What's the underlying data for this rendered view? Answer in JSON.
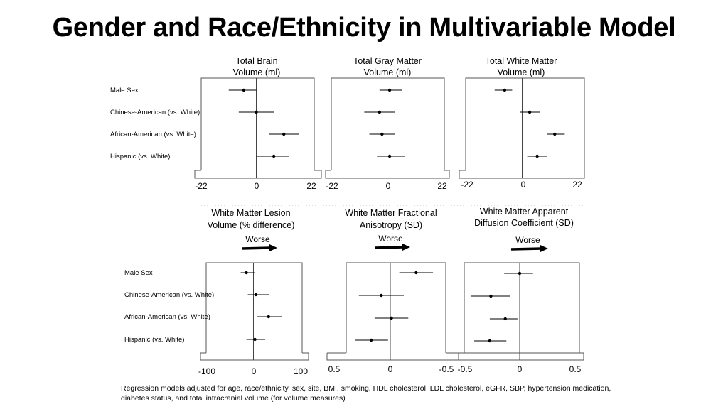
{
  "title": "Gender and Race/Ethnicity in Multivariable Model",
  "footnote": "Regression models adjusted for age, race/ethnicity, sex, site, BMI, smoking, HDL cholesterol, LDL cholesterol, eGFR, SBP, hypertension medication, diabetes status, and total intracranial volume (for volume measures)",
  "worse_label": "Worse",
  "chart_data": [
    {
      "type": "forest",
      "title_lines": [
        "Total Brain",
        "Volume (ml)"
      ],
      "categories": [
        "Male Sex",
        "Chinese-American (vs. White)",
        "African-American (vs. White)",
        "Hispanic (vs. White)"
      ],
      "estimates": [
        -5,
        0,
        11,
        7
      ],
      "ci_low": [
        -11,
        -7,
        5,
        0
      ],
      "ci_high": [
        0,
        7,
        17,
        13
      ],
      "xlim": [
        -22,
        22
      ],
      "ticks": [
        -22,
        0,
        22
      ],
      "tick_labels": [
        "-22",
        "0",
        "22"
      ],
      "reversed": false
    },
    {
      "type": "forest",
      "title_lines": [
        "Total Gray Matter",
        "Volume (ml)"
      ],
      "categories": [
        "Male Sex",
        "Chinese-American (vs. White)",
        "African-American (vs. White)",
        "Hispanic (vs. White)"
      ],
      "estimates": [
        1,
        -3,
        -2,
        1
      ],
      "ci_low": [
        -3,
        -9,
        -7,
        -4
      ],
      "ci_high": [
        6,
        3,
        3,
        7
      ],
      "xlim": [
        -22,
        22
      ],
      "ticks": [
        -22,
        0,
        22
      ],
      "tick_labels": [
        "-22",
        "0",
        "22"
      ],
      "reversed": false
    },
    {
      "type": "forest",
      "title_lines": [
        "Total White Matter",
        "Volume (ml)"
      ],
      "categories": [
        "Male Sex",
        "Chinese-American (vs. White)",
        "African-American (vs. White)",
        "Hispanic (vs. White)"
      ],
      "estimates": [
        -7,
        3,
        13,
        6
      ],
      "ci_low": [
        -11,
        -1,
        10,
        2
      ],
      "ci_high": [
        -4,
        7,
        17,
        10
      ],
      "xlim": [
        -22,
        22
      ],
      "ticks": [
        -22,
        0,
        22
      ],
      "tick_labels": [
        "-22",
        "0",
        "22"
      ],
      "reversed": false
    },
    {
      "type": "forest",
      "title_lines": [
        "White Matter Lesion",
        "Volume (% difference)"
      ],
      "show_worse": true,
      "categories": [
        "Male Sex",
        "Chinese-American (vs. White)",
        "African-American (vs. White)",
        "Hispanic (vs. White)"
      ],
      "estimates": [
        -15,
        5,
        32,
        3
      ],
      "ci_low": [
        -27,
        -12,
        8,
        -15
      ],
      "ci_high": [
        2,
        33,
        60,
        25
      ],
      "xlim": [
        -100,
        100
      ],
      "ticks": [
        -100,
        0,
        100
      ],
      "tick_labels": [
        "-100",
        "0",
        "100"
      ],
      "reversed": false
    },
    {
      "type": "forest",
      "title_lines": [
        "White Matter Fractional",
        "Anisotropy (SD)"
      ],
      "show_worse": true,
      "categories": [
        "Male Sex",
        "Chinese-American (vs. White)",
        "African-American (vs. White)",
        "Hispanic (vs. White)"
      ],
      "estimates": [
        -0.23,
        0.08,
        -0.01,
        0.17
      ],
      "ci_low": [
        -0.38,
        -0.12,
        -0.16,
        0.02
      ],
      "ci_high": [
        -0.08,
        0.28,
        0.14,
        0.31
      ],
      "xlim": [
        0.5,
        -0.5
      ],
      "ticks": [
        0.5,
        0,
        -0.5
      ],
      "tick_labels": [
        "0.5",
        "0",
        "-0.5"
      ],
      "reversed": true
    },
    {
      "type": "forest",
      "title_lines": [
        "White Matter Apparent",
        "Diffusion Coefficient (SD)"
      ],
      "show_worse": true,
      "categories": [
        "Male Sex",
        "Chinese-American (vs. White)",
        "African-American (vs. White)",
        "Hispanic (vs. White)"
      ],
      "estimates": [
        0,
        -0.26,
        -0.13,
        -0.27
      ],
      "ci_low": [
        -0.14,
        -0.44,
        -0.27,
        -0.41
      ],
      "ci_high": [
        0.12,
        -0.09,
        -0.02,
        -0.12
      ],
      "xlim": [
        -0.5,
        0.5
      ],
      "ticks": [
        -0.5,
        0,
        0.5
      ],
      "tick_labels": [
        "-0.5",
        "0",
        "0.5"
      ],
      "reversed": false
    }
  ]
}
